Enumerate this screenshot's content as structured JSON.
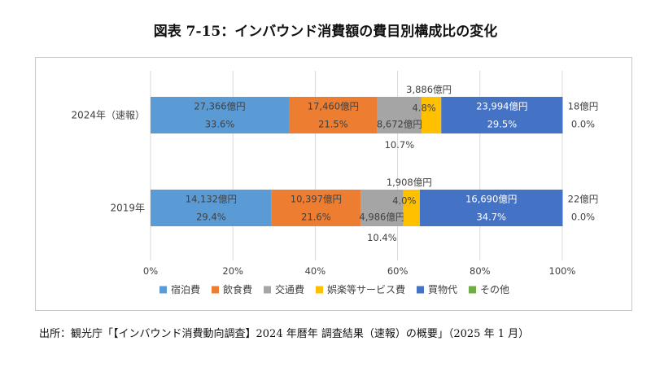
{
  "title": "図表 7-15：インバウンド消費額の費目別構成比の変化",
  "source": "出所：観光庁「【インバウンド消費動向調査】2024 年暦年 調査結果（速報）の概要」（2025 年 1 月）",
  "colors": {
    "accommodation": "#5b9bd5",
    "food": "#ed7d31",
    "transport": "#a5a5a5",
    "entertainment": "#ffc000",
    "shopping": "#4472c4",
    "other": "#70ad47"
  },
  "chart_data": {
    "type": "bar",
    "orientation": "horizontal",
    "stacked": "percent",
    "categories": [
      "2024年（速報）",
      "2019年"
    ],
    "xlim": [
      0,
      100
    ],
    "x_ticks": [
      "0%",
      "20%",
      "40%",
      "60%",
      "80%",
      "100%"
    ],
    "grid": true,
    "legend_position": "bottom",
    "series": [
      {
        "name": "宿泊費",
        "color_key": "accommodation",
        "percent": [
          33.6,
          29.4
        ],
        "amount_labels": [
          "27,366億円",
          "14,132億円"
        ],
        "percent_labels": [
          "33.6%",
          "29.4%"
        ]
      },
      {
        "name": "飲食費",
        "color_key": "food",
        "percent": [
          21.5,
          21.6
        ],
        "amount_labels": [
          "17,460億円",
          "10,397億円"
        ],
        "percent_labels": [
          "21.5%",
          "21.6%"
        ]
      },
      {
        "name": "交通費",
        "color_key": "transport",
        "percent": [
          10.7,
          10.4
        ],
        "amount_labels": [
          "8,672億円",
          "4,986億円"
        ],
        "percent_labels": [
          "10.7%",
          "10.4%"
        ]
      },
      {
        "name": "娯楽等サービス費",
        "color_key": "entertainment",
        "percent": [
          4.8,
          4.0
        ],
        "amount_labels": [
          "3,886億円",
          "1,908億円"
        ],
        "percent_labels": [
          "4.8%",
          "4.0%"
        ]
      },
      {
        "name": "買物代",
        "color_key": "shopping",
        "percent": [
          29.5,
          34.7
        ],
        "amount_labels": [
          "23,994億円",
          "16,690億円"
        ],
        "percent_labels": [
          "29.5%",
          "34.7%"
        ]
      },
      {
        "name": "その他",
        "color_key": "other",
        "percent": [
          0.0,
          0.0
        ],
        "amount_labels": [
          "18億円",
          "22億円"
        ],
        "percent_labels": [
          "0.0%",
          "0.0%"
        ]
      }
    ]
  }
}
